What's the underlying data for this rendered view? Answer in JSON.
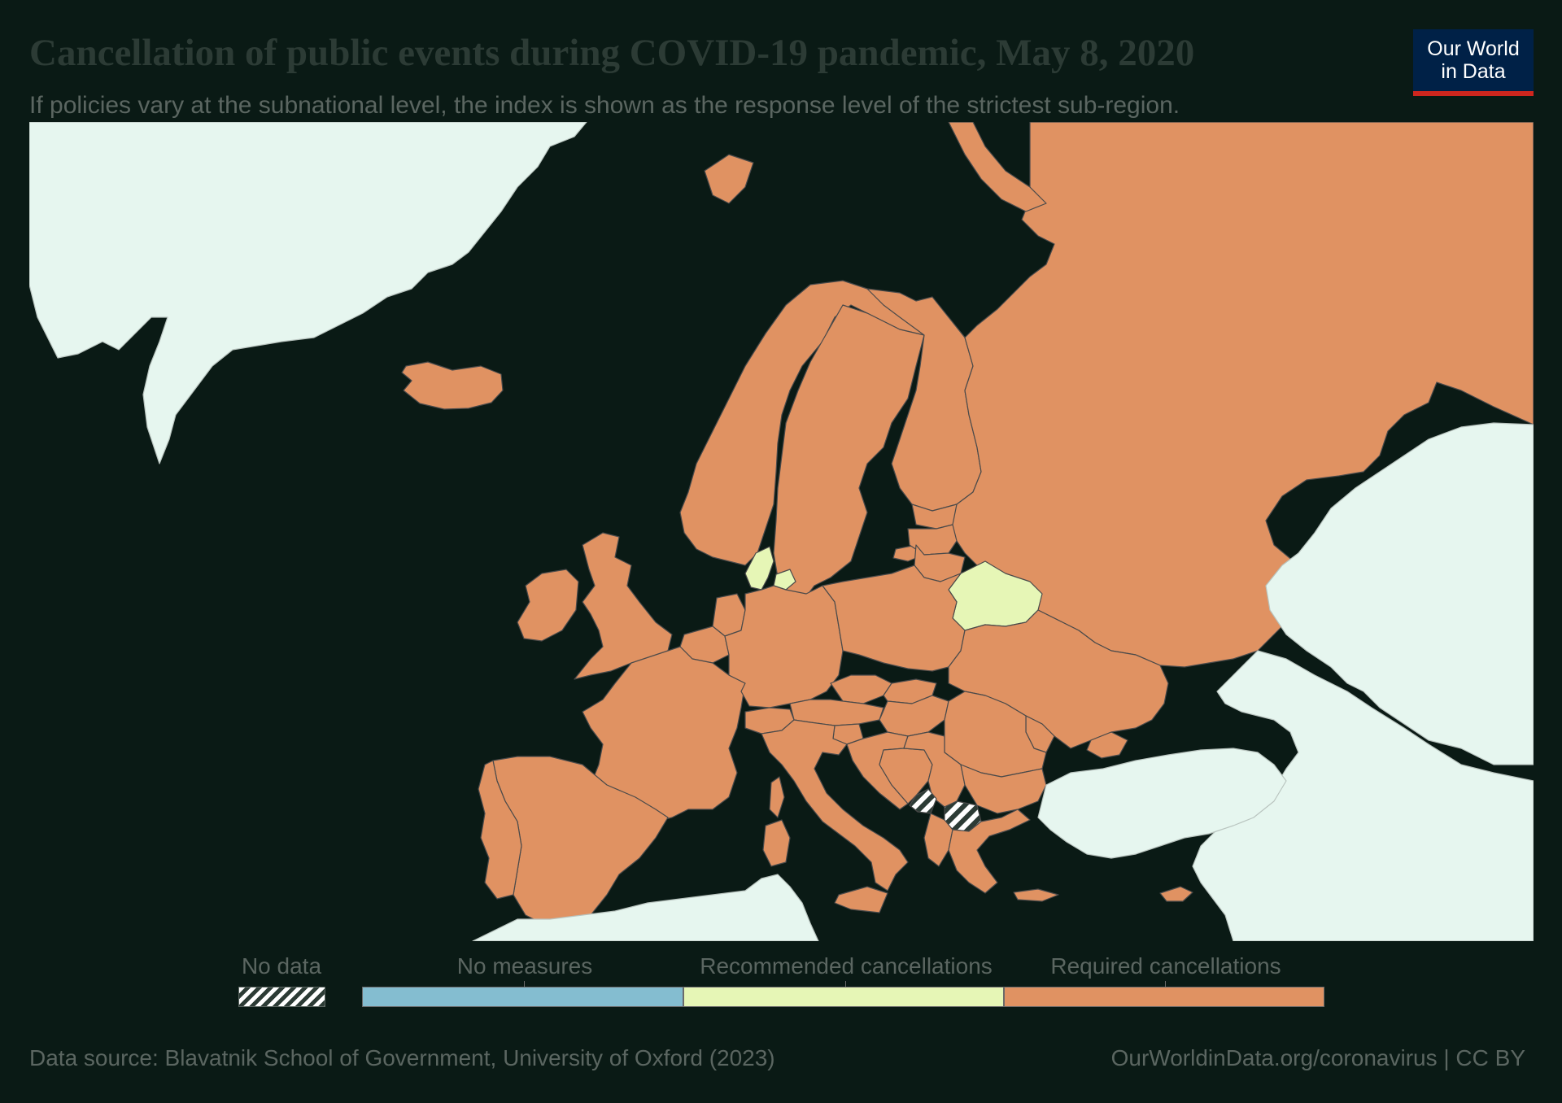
{
  "header": {
    "title": "Cancellation of public events during COVID-19 pandemic, May 8, 2020",
    "subtitle": "If policies vary at the subnational level, the index is shown as the response level of the strictest sub-region.",
    "logo_line1": "Our World",
    "logo_line2": "in Data"
  },
  "colors": {
    "background": "#0a1a15",
    "water": "#0a1a15",
    "outside_region": "#e6f6ef",
    "no_measures": "#84bdd0",
    "recommended": "#e6f6b6",
    "required": "#e09262",
    "border": "#4a4a4a",
    "logo_bg": "#002147",
    "logo_accent": "#ce261e"
  },
  "legend": {
    "no_data": "No data",
    "bins": [
      {
        "label": "No measures",
        "color": "#84bdd0"
      },
      {
        "label": "Recommended cancellations",
        "color": "#e6f6b6"
      },
      {
        "label": "Required cancellations",
        "color": "#e09262"
      }
    ]
  },
  "map": {
    "regions": [
      {
        "name": "Greenland",
        "status": "outside"
      },
      {
        "name": "Iceland",
        "status": "required"
      },
      {
        "name": "Norway",
        "status": "required"
      },
      {
        "name": "Sweden",
        "status": "required"
      },
      {
        "name": "Finland",
        "status": "required"
      },
      {
        "name": "Russia",
        "status": "required"
      },
      {
        "name": "Estonia",
        "status": "required"
      },
      {
        "name": "Latvia",
        "status": "required"
      },
      {
        "name": "Lithuania",
        "status": "required"
      },
      {
        "name": "Belarus",
        "status": "recommended"
      },
      {
        "name": "Denmark",
        "status": "recommended"
      },
      {
        "name": "Ireland",
        "status": "required"
      },
      {
        "name": "United Kingdom",
        "status": "required"
      },
      {
        "name": "Netherlands",
        "status": "required"
      },
      {
        "name": "Belgium",
        "status": "required"
      },
      {
        "name": "Germany",
        "status": "required"
      },
      {
        "name": "Poland",
        "status": "required"
      },
      {
        "name": "Ukraine",
        "status": "required"
      },
      {
        "name": "France",
        "status": "required"
      },
      {
        "name": "Switzerland",
        "status": "required"
      },
      {
        "name": "Austria",
        "status": "required"
      },
      {
        "name": "Czechia",
        "status": "required"
      },
      {
        "name": "Slovakia",
        "status": "required"
      },
      {
        "name": "Hungary",
        "status": "required"
      },
      {
        "name": "Moldova",
        "status": "required"
      },
      {
        "name": "Romania",
        "status": "required"
      },
      {
        "name": "Slovenia",
        "status": "required"
      },
      {
        "name": "Croatia",
        "status": "required"
      },
      {
        "name": "Bosnia and Herzegovina",
        "status": "required"
      },
      {
        "name": "Serbia",
        "status": "required"
      },
      {
        "name": "Montenegro",
        "status": "no-data"
      },
      {
        "name": "North Macedonia",
        "status": "no-data"
      },
      {
        "name": "Albania",
        "status": "required"
      },
      {
        "name": "Bulgaria",
        "status": "required"
      },
      {
        "name": "Greece",
        "status": "required"
      },
      {
        "name": "Italy",
        "status": "required"
      },
      {
        "name": "Spain",
        "status": "required"
      },
      {
        "name": "Portugal",
        "status": "required"
      },
      {
        "name": "Cyprus",
        "status": "required"
      },
      {
        "name": "Kazakhstan",
        "status": "outside"
      },
      {
        "name": "Turkey",
        "status": "outside"
      },
      {
        "name": "Caucasus and Middle East",
        "status": "outside"
      },
      {
        "name": "North Africa",
        "status": "outside"
      }
    ]
  },
  "footer": {
    "source": "Data source: Blavatnik School of Government, University of Oxford (2023)",
    "credit": "OurWorldinData.org/coronavirus | CC BY"
  }
}
